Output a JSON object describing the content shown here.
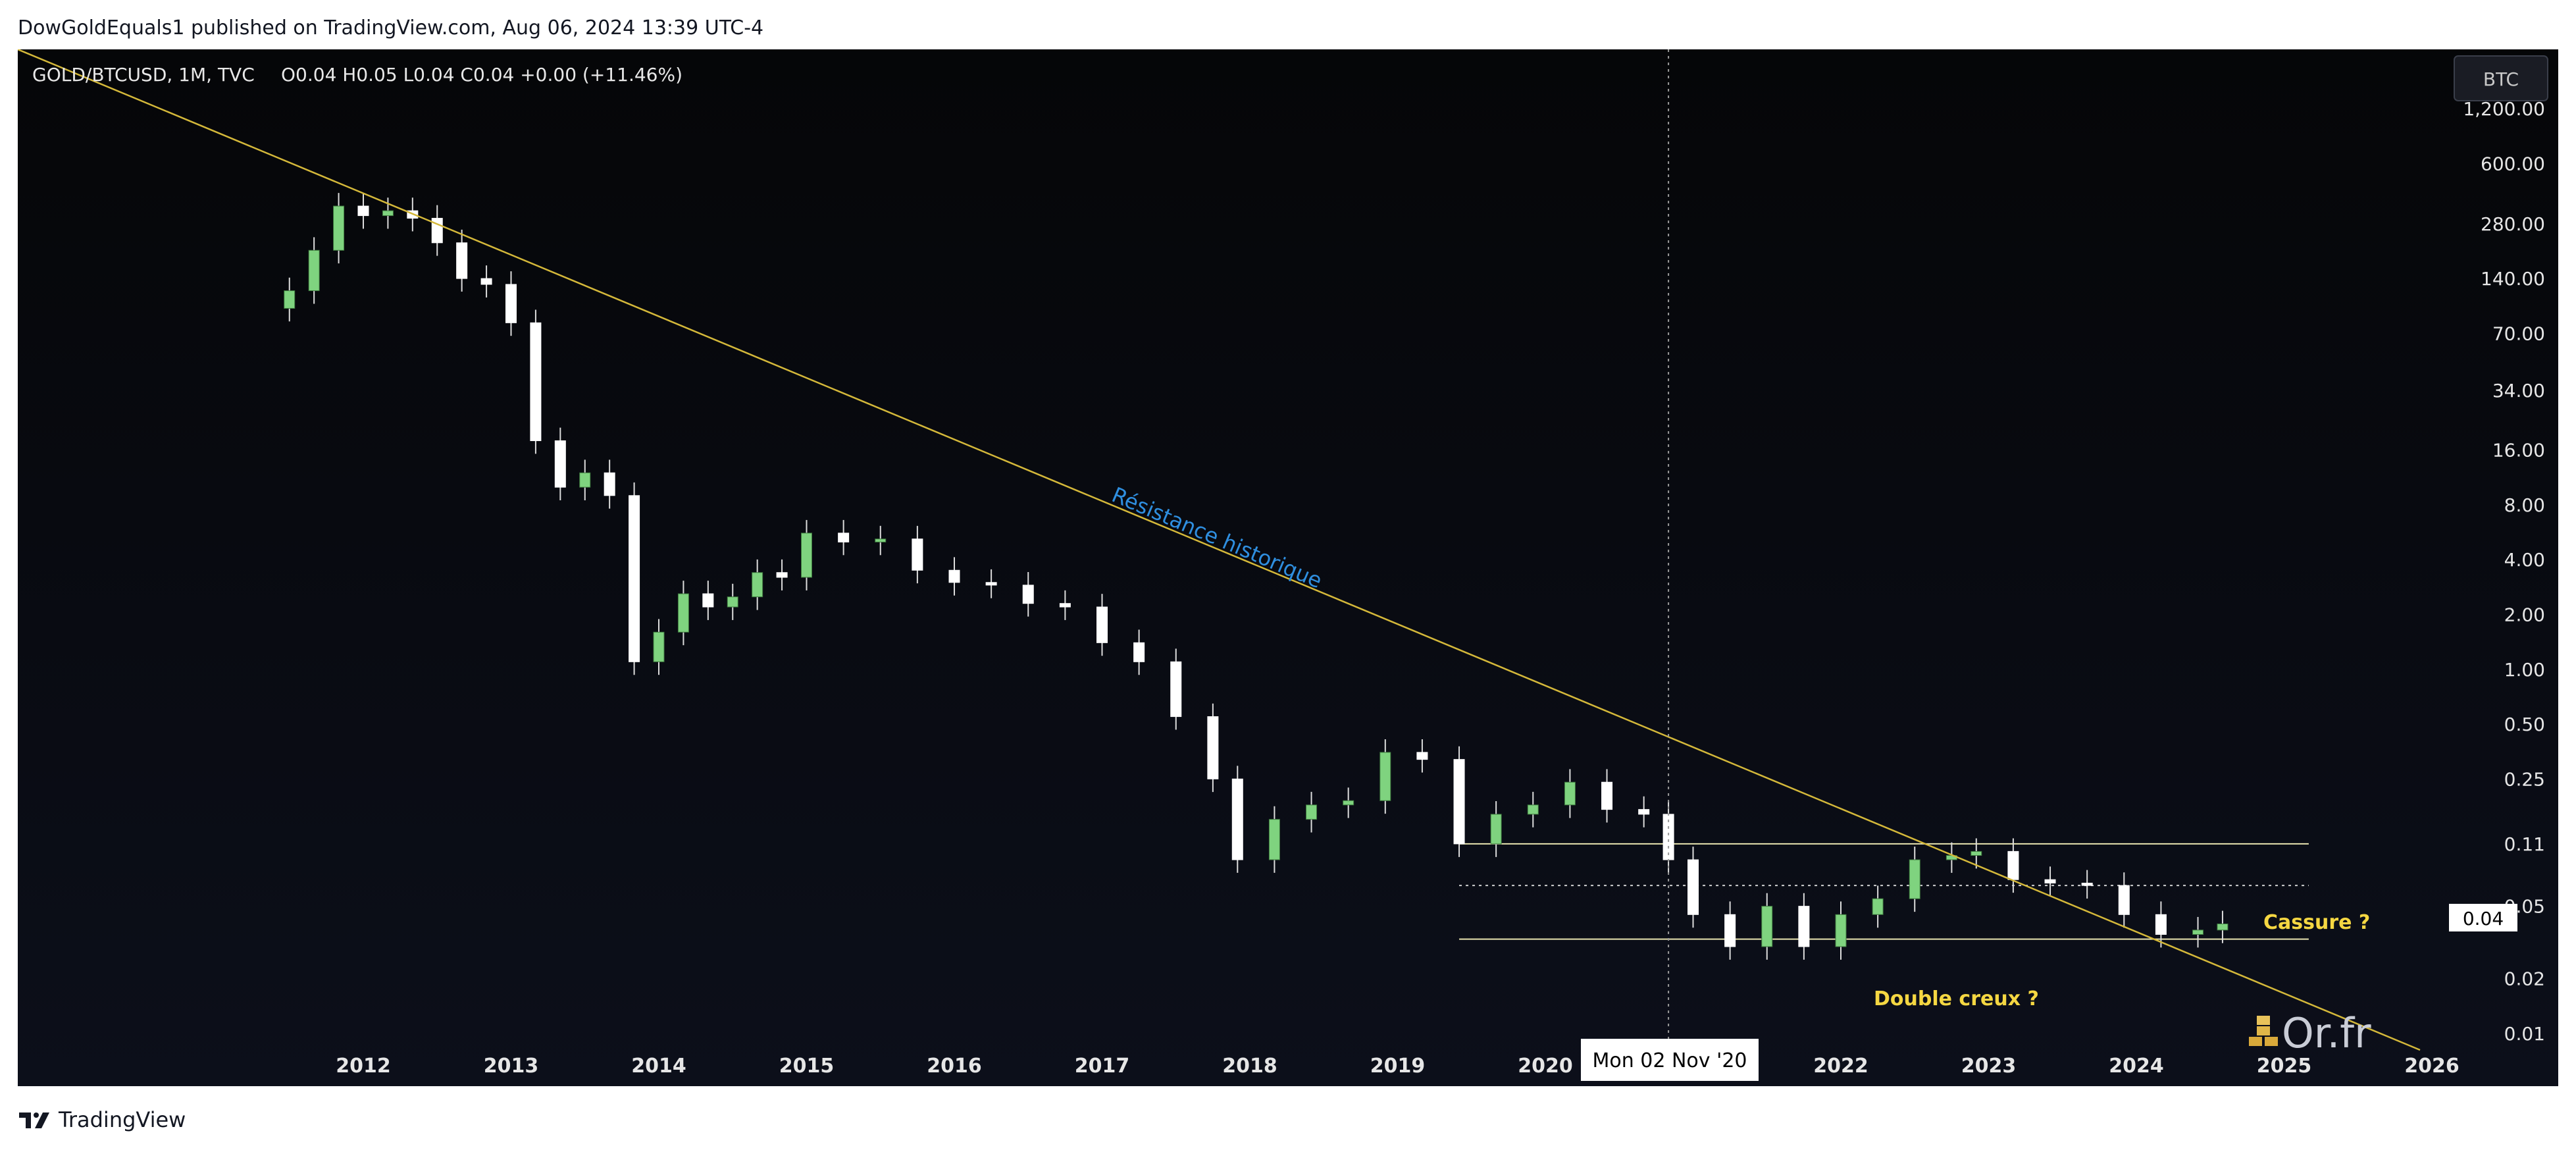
{
  "header": {
    "publisher_line": "DowGoldEquals1 published on TradingView.com, Aug 06, 2024 13:39 UTC-4"
  },
  "legend": {
    "symbol": "GOLD/BTCUSD, 1M, TVC",
    "ohlc": "O0.04  H0.05  L0.04  C0.04  +0.00 (+11.46%)"
  },
  "currency_button": "BTC",
  "price_label": "0.04",
  "crosshair_label": "Mon 02 Nov '20",
  "annotations": {
    "resistance": "Résistance historique",
    "breakout": "Cassure ?",
    "double_bottom": "Double creux ?"
  },
  "watermark": "Or.fr",
  "footer": {
    "brand": "TradingView"
  },
  "colors": {
    "background": "#05060a",
    "up": "#7fd37f",
    "down": "#ffffff",
    "trendline": "#d4b83a",
    "annotation_blue": "#2f8fe0",
    "annotation_yellow": "#f5d742"
  },
  "chart_data": {
    "type": "candlestick",
    "title": "GOLD/BTCUSD, 1M, TVC",
    "x_tick_labels": [
      "2012",
      "2013",
      "2014",
      "2015",
      "2016",
      "2017",
      "2018",
      "2019",
      "2020",
      "2022",
      "2023",
      "2024",
      "2025",
      "2026"
    ],
    "y_scale": "log",
    "y_tick_labels": [
      "1,200.00",
      "600.00",
      "280.00",
      "140.00",
      "70.00",
      "34.00",
      "16.00",
      "8.00",
      "4.00",
      "2.00",
      "1.00",
      "0.50",
      "0.25",
      "0.11",
      "0.05",
      "0.02",
      "0.01"
    ],
    "ylim": [
      0.01,
      1200
    ],
    "series": [
      {
        "date": "2011-07",
        "close": 120
      },
      {
        "date": "2011-09",
        "close": 200
      },
      {
        "date": "2011-11",
        "close": 350
      },
      {
        "date": "2012-01",
        "close": 310
      },
      {
        "date": "2012-03",
        "close": 330
      },
      {
        "date": "2012-05",
        "close": 300
      },
      {
        "date": "2012-07",
        "close": 220
      },
      {
        "date": "2012-09",
        "close": 140
      },
      {
        "date": "2012-11",
        "close": 130
      },
      {
        "date": "2013-01",
        "close": 80
      },
      {
        "date": "2013-03",
        "close": 18
      },
      {
        "date": "2013-05",
        "close": 10
      },
      {
        "date": "2013-07",
        "close": 12
      },
      {
        "date": "2013-09",
        "close": 9
      },
      {
        "date": "2013-11",
        "close": 1.1
      },
      {
        "date": "2014-01",
        "close": 1.6
      },
      {
        "date": "2014-03",
        "close": 2.6
      },
      {
        "date": "2014-05",
        "close": 2.2
      },
      {
        "date": "2014-07",
        "close": 2.5
      },
      {
        "date": "2014-09",
        "close": 3.4
      },
      {
        "date": "2014-11",
        "close": 3.2
      },
      {
        "date": "2015-01",
        "close": 5.6
      },
      {
        "date": "2015-04",
        "close": 5.0
      },
      {
        "date": "2015-07",
        "close": 5.2
      },
      {
        "date": "2015-10",
        "close": 3.5
      },
      {
        "date": "2016-01",
        "close": 3.0
      },
      {
        "date": "2016-04",
        "close": 2.9
      },
      {
        "date": "2016-07",
        "close": 2.3
      },
      {
        "date": "2016-10",
        "close": 2.2
      },
      {
        "date": "2017-01",
        "close": 1.4
      },
      {
        "date": "2017-04",
        "close": 1.1
      },
      {
        "date": "2017-07",
        "close": 0.55
      },
      {
        "date": "2017-10",
        "close": 0.25
      },
      {
        "date": "2017-12",
        "close": 0.09
      },
      {
        "date": "2018-03",
        "close": 0.15
      },
      {
        "date": "2018-06",
        "close": 0.18
      },
      {
        "date": "2018-09",
        "close": 0.19
      },
      {
        "date": "2018-12",
        "close": 0.35
      },
      {
        "date": "2019-03",
        "close": 0.32
      },
      {
        "date": "2019-06",
        "close": 0.11
      },
      {
        "date": "2019-09",
        "close": 0.16
      },
      {
        "date": "2019-12",
        "close": 0.18
      },
      {
        "date": "2020-03",
        "close": 0.24
      },
      {
        "date": "2020-06",
        "close": 0.17
      },
      {
        "date": "2020-09",
        "close": 0.16
      },
      {
        "date": "2020-11",
        "close": 0.09
      },
      {
        "date": "2021-01",
        "close": 0.045
      },
      {
        "date": "2021-04",
        "close": 0.03
      },
      {
        "date": "2021-07",
        "close": 0.05
      },
      {
        "date": "2021-10",
        "close": 0.03
      },
      {
        "date": "2022-01",
        "close": 0.045
      },
      {
        "date": "2022-04",
        "close": 0.055
      },
      {
        "date": "2022-07",
        "close": 0.09
      },
      {
        "date": "2022-10",
        "close": 0.095
      },
      {
        "date": "2022-12",
        "close": 0.1
      },
      {
        "date": "2023-03",
        "close": 0.07
      },
      {
        "date": "2023-06",
        "close": 0.067
      },
      {
        "date": "2023-09",
        "close": 0.065
      },
      {
        "date": "2023-12",
        "close": 0.045
      },
      {
        "date": "2024-03",
        "close": 0.035
      },
      {
        "date": "2024-06",
        "close": 0.037
      },
      {
        "date": "2024-08",
        "close": 0.04
      }
    ],
    "levels": [
      0.11,
      0.065,
      0.033
    ]
  }
}
